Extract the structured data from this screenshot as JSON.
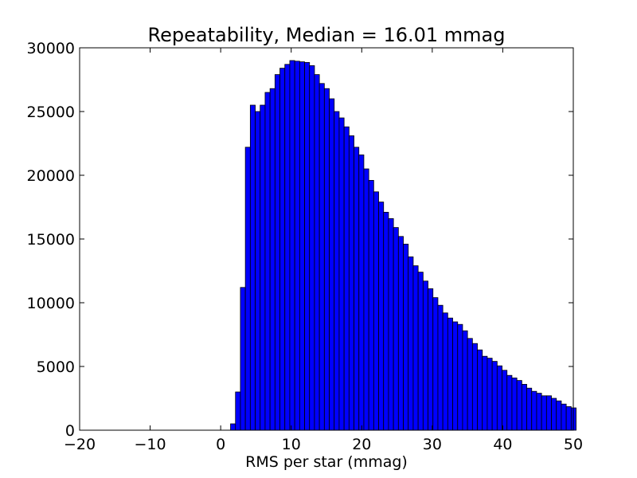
{
  "chart_data": {
    "type": "bar",
    "title": "Repeatability, Median = 16.01 mmag",
    "xlabel": "RMS per star (mmag)",
    "ylabel": "",
    "xlim": [
      -20,
      50
    ],
    "ylim": [
      0,
      30000
    ],
    "x_ticks": [
      -20,
      -10,
      0,
      10,
      20,
      30,
      40,
      50
    ],
    "x_tick_labels": [
      "−20",
      "−10",
      "0",
      "10",
      "20",
      "30",
      "40",
      "50"
    ],
    "y_ticks": [
      0,
      5000,
      10000,
      15000,
      20000,
      25000,
      30000
    ],
    "y_tick_labels": [
      "0",
      "5000",
      "10000",
      "15000",
      "20000",
      "25000",
      "30000"
    ],
    "grid": false,
    "legend": "none",
    "bar_color": "#0000ff",
    "edge_color": "#000000",
    "bin_width": 0.7,
    "bin_start": 0.0,
    "values": [
      0,
      0,
      500,
      3000,
      11200,
      22200,
      25500,
      25000,
      25500,
      26500,
      26800,
      27900,
      28400,
      28700,
      29000,
      28950,
      28900,
      28850,
      28600,
      27900,
      27200,
      26800,
      26000,
      25000,
      24500,
      23800,
      23100,
      22200,
      21600,
      20500,
      19600,
      18700,
      17900,
      17100,
      16600,
      15900,
      15200,
      14600,
      13600,
      12900,
      12400,
      11700,
      11100,
      10400,
      9800,
      9200,
      8800,
      8500,
      8300,
      7800,
      7200,
      6800,
      6300,
      5800,
      5650,
      5400,
      5050,
      4700,
      4300,
      4100,
      3900,
      3600,
      3300,
      3050,
      2900,
      2700,
      2700,
      2500,
      2300,
      2050,
      1850,
      1750
    ]
  }
}
